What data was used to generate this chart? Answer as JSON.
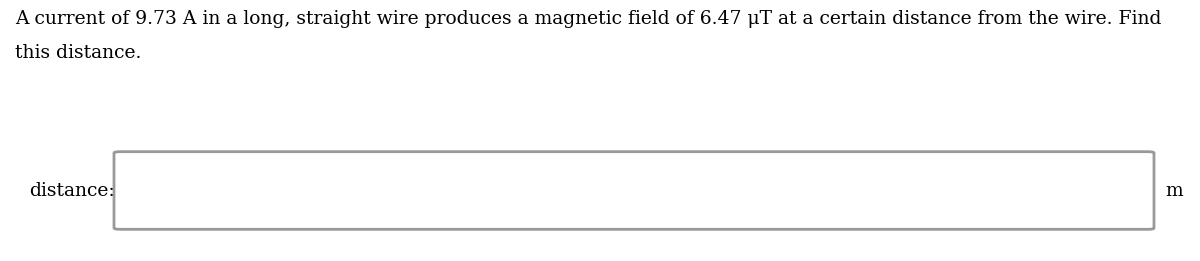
{
  "question_line1": "A current of 9.73 A in a long, straight wire produces a magnetic field of 6.47 μT at a certain distance from the wire. Find",
  "question_line2": "this distance.",
  "label_text": "distance:",
  "unit_text": "m",
  "bg_color": "#ffffff",
  "text_color": "#000000",
  "box_border_color": "#999999",
  "font_size": 13.5,
  "label_font_size": 13.5,
  "unit_font_size": 13.5,
  "fig_width": 12.0,
  "fig_height": 2.61,
  "dpi": 100
}
